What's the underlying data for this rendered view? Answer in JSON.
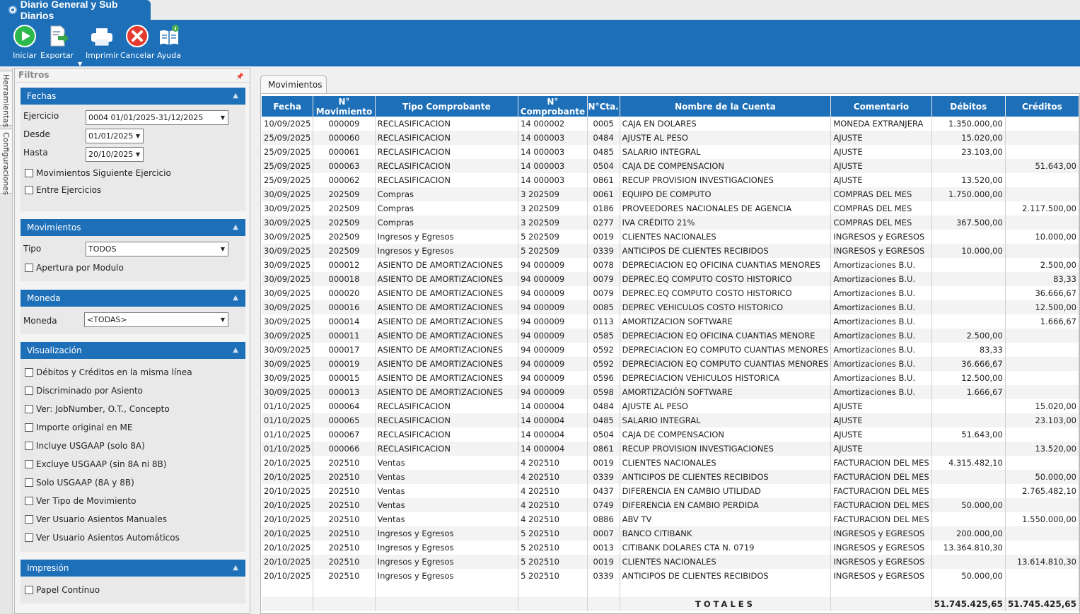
{
  "window": {
    "title": "Diario General y Sub Diarios"
  },
  "toolbar": {
    "buttons": [
      {
        "label": "Iniciar",
        "icon": "play-icon",
        "color": "#2db84d"
      },
      {
        "label": "Exportar",
        "icon": "export-icon",
        "color": "#3aa64a"
      },
      {
        "label": "Imprimir",
        "icon": "printer-icon",
        "color": "#ffffff"
      },
      {
        "label": "Cancelar",
        "icon": "cancel-icon",
        "color": "#e53b2f"
      },
      {
        "label": "Ayuda",
        "icon": "help-book-icon",
        "color": "#ffffff"
      }
    ]
  },
  "side_tabs": [
    "Herramientas",
    "Configuraciones"
  ],
  "filters": {
    "title": "Filtros",
    "fechas": {
      "title": "Fechas",
      "ejercicio_label": "Ejercicio",
      "ejercicio_value": "0004 01/01/2025-31/12/2025",
      "desde_label": "Desde",
      "desde_value": "01/01/2025",
      "hasta_label": "Hasta",
      "hasta_value": "20/10/2025",
      "checks": [
        "Movimientos Siguiente Ejercicio",
        "Entre Ejercicios"
      ]
    },
    "movimientos": {
      "title": "Movimientos",
      "tipo_label": "Tipo",
      "tipo_value": "TODOS",
      "checks": [
        "Apertura por Modulo"
      ]
    },
    "moneda": {
      "title": "Moneda",
      "moneda_label": "Moneda",
      "moneda_value": "<TODAS>"
    },
    "visualizacion": {
      "title": "Visualización",
      "checks": [
        "Débitos y Créditos en la misma línea",
        "Discriminado por Asiento",
        "Ver: JobNumber, O.T., Concepto",
        "Importe original en ME",
        "Incluye USGAAP (solo 8A)",
        "Excluye USGAAP (sin 8A ni 8B)",
        "Solo USGAAP (8A y 8B)",
        "Ver Tipo de Movimiento",
        "Ver Usuario Asientos Manuales",
        "Ver Usuario Asientos Automáticos"
      ]
    },
    "impresion": {
      "title": "Impresión",
      "checks": [
        "Papel Contínuo"
      ]
    }
  },
  "main": {
    "tab": "Movimientos",
    "columns": [
      "Fecha",
      "N° Movimiento",
      "Tipo Comprobante",
      "N° Comprobante",
      "N°Cta.",
      "Nombre de la Cuenta",
      "Comentario",
      "Débitos",
      "Créditos"
    ],
    "rows": [
      [
        "10/09/2025",
        "000009",
        "RECLASIFICACION",
        "14  000002",
        "0005",
        "CAJA EN DOLARES",
        "MONEDA EXTRANJERA",
        "1.350.000,00",
        ""
      ],
      [
        "25/09/2025",
        "000060",
        "RECLASIFICACION",
        "14  000003",
        "0484",
        "AJUSTE AL PESO",
        "AJUSTE",
        "15.020,00",
        ""
      ],
      [
        "25/09/2025",
        "000061",
        "RECLASIFICACION",
        "14  000003",
        "0485",
        "SALARIO INTEGRAL",
        "AJUSTE",
        "23.103,00",
        ""
      ],
      [
        "25/09/2025",
        "000063",
        "RECLASIFICACION",
        "14  000003",
        "0504",
        "CAJA DE COMPENSACION",
        "AJUSTE",
        "",
        "51.643,00"
      ],
      [
        "25/09/2025",
        "000062",
        "RECLASIFICACION",
        "14  000003",
        "0861",
        "RECUP PROVISION INVESTIGACIONES",
        "AJUSTE",
        "13.520,00",
        ""
      ],
      [
        "30/09/2025",
        "202509",
        "Compras",
        "3  202509",
        "0061",
        "EQUIPO DE COMPUTO",
        "COMPRAS DEL MES",
        "1.750.000,00",
        ""
      ],
      [
        "30/09/2025",
        "202509",
        "Compras",
        "3  202509",
        "0186",
        "PROVEEDORES NACIONALES DE AGENCIA",
        "COMPRAS DEL MES",
        "",
        "2.117.500,00"
      ],
      [
        "30/09/2025",
        "202509",
        "Compras",
        "3  202509",
        "0277",
        "IVA CRÉDITO 21%",
        "COMPRAS DEL MES",
        "367.500,00",
        ""
      ],
      [
        "30/09/2025",
        "202509",
        "Ingresos y Egresos",
        "5  202509",
        "0019",
        "CLIENTES NACIONALES",
        "INGRESOS y EGRESOS",
        "",
        "10.000,00"
      ],
      [
        "30/09/2025",
        "202509",
        "Ingresos y Egresos",
        "5  202509",
        "0339",
        "ANTICIPOS DE CLIENTES RECIBIDOS",
        "INGRESOS y EGRESOS",
        "10.000,00",
        ""
      ],
      [
        "30/09/2025",
        "000012",
        "ASIENTO DE AMORTIZACIONES",
        "94  000009",
        "0078",
        "DEPRECIACION EQ OFICINA CUANTIAS MENORES",
        "Amortizaciones B.U.",
        "",
        "2.500,00"
      ],
      [
        "30/09/2025",
        "000018",
        "ASIENTO DE AMORTIZACIONES",
        "94  000009",
        "0079",
        "DEPREC.EQ COMPUTO COSTO HISTORICO",
        "Amortizaciones B.U.",
        "",
        "83,33"
      ],
      [
        "30/09/2025",
        "000020",
        "ASIENTO DE AMORTIZACIONES",
        "94  000009",
        "0079",
        "DEPREC.EQ COMPUTO COSTO HISTORICO",
        "Amortizaciones B.U.",
        "",
        "36.666,67"
      ],
      [
        "30/09/2025",
        "000016",
        "ASIENTO DE AMORTIZACIONES",
        "94  000009",
        "0085",
        "DEPREC VEHICULOS COSTO HISTORICO",
        "Amortizaciones B.U.",
        "",
        "12.500,00"
      ],
      [
        "30/09/2025",
        "000014",
        "ASIENTO DE AMORTIZACIONES",
        "94  000009",
        "0113",
        "AMORTIZACION SOFTWARE",
        "Amortizaciones B.U.",
        "",
        "1.666,67"
      ],
      [
        "30/09/2025",
        "000011",
        "ASIENTO DE AMORTIZACIONES",
        "94  000009",
        "0585",
        "DEPRECIACION EQ OFICINA CUANTIAS  MENORE",
        "Amortizaciones B.U.",
        "2.500,00",
        ""
      ],
      [
        "30/09/2025",
        "000017",
        "ASIENTO DE AMORTIZACIONES",
        "94  000009",
        "0592",
        "DEPRECIACION EQ COMPUTO CUANTIAS MENORES",
        "Amortizaciones B.U.",
        "83,33",
        ""
      ],
      [
        "30/09/2025",
        "000019",
        "ASIENTO DE AMORTIZACIONES",
        "94  000009",
        "0592",
        "DEPRECIACION EQ COMPUTO CUANTIAS MENORES",
        "Amortizaciones B.U.",
        "36.666,67",
        ""
      ],
      [
        "30/09/2025",
        "000015",
        "ASIENTO DE AMORTIZACIONES",
        "94  000009",
        "0596",
        "DEPRECIACION VEHICULOS HISTORICA",
        "Amortizaciones B.U.",
        "12.500,00",
        ""
      ],
      [
        "30/09/2025",
        "000013",
        "ASIENTO DE AMORTIZACIONES",
        "94  000009",
        "0598",
        "AMORTIZACIÓN SOFTWARE",
        "Amortizaciones B.U.",
        "1.666,67",
        ""
      ],
      [
        "01/10/2025",
        "000064",
        "RECLASIFICACION",
        "14  000004",
        "0484",
        "AJUSTE AL PESO",
        "AJUSTE",
        "",
        "15.020,00"
      ],
      [
        "01/10/2025",
        "000065",
        "RECLASIFICACION",
        "14  000004",
        "0485",
        "SALARIO INTEGRAL",
        "AJUSTE",
        "",
        "23.103,00"
      ],
      [
        "01/10/2025",
        "000067",
        "RECLASIFICACION",
        "14  000004",
        "0504",
        "CAJA DE COMPENSACION",
        "AJUSTE",
        "51.643,00",
        ""
      ],
      [
        "01/10/2025",
        "000066",
        "RECLASIFICACION",
        "14  000004",
        "0861",
        "RECUP PROVISION INVESTIGACIONES",
        "AJUSTE",
        "",
        "13.520,00"
      ],
      [
        "20/10/2025",
        "202510",
        "Ventas",
        "4  202510",
        "0019",
        "CLIENTES NACIONALES",
        "FACTURACION DEL MES",
        "4.315.482,10",
        ""
      ],
      [
        "20/10/2025",
        "202510",
        "Ventas",
        "4  202510",
        "0339",
        "ANTICIPOS DE CLIENTES RECIBIDOS",
        "FACTURACION DEL MES",
        "",
        "50.000,00"
      ],
      [
        "20/10/2025",
        "202510",
        "Ventas",
        "4  202510",
        "0437",
        "DIFERENCIA EN CAMBIO UTILIDAD",
        "FACTURACION DEL MES",
        "",
        "2.765.482,10"
      ],
      [
        "20/10/2025",
        "202510",
        "Ventas",
        "4  202510",
        "0749",
        "DIFERENCIA EN CAMBIO PERDIDA",
        "FACTURACION DEL MES",
        "50.000,00",
        ""
      ],
      [
        "20/10/2025",
        "202510",
        "Ventas",
        "4  202510",
        "0886",
        "ABV TV",
        "FACTURACION DEL MES",
        "",
        "1.550.000,00"
      ],
      [
        "20/10/2025",
        "202510",
        "Ingresos y Egresos",
        "5  202510",
        "0007",
        "BANCO CITIBANK",
        "INGRESOS y EGRESOS",
        "200.000,00",
        ""
      ],
      [
        "20/10/2025",
        "202510",
        "Ingresos y Egresos",
        "5  202510",
        "0013",
        "CITIBANK DOLARES CTA N. 0719",
        "INGRESOS y EGRESOS",
        "13.364.810,30",
        ""
      ],
      [
        "20/10/2025",
        "202510",
        "Ingresos y Egresos",
        "5  202510",
        "0019",
        "CLIENTES NACIONALES",
        "INGRESOS y EGRESOS",
        "",
        "13.614.810,30"
      ],
      [
        "20/10/2025",
        "202510",
        "Ingresos y Egresos",
        "5  202510",
        "0339",
        "ANTICIPOS DE CLIENTES RECIBIDOS",
        "INGRESOS y EGRESOS",
        "50.000,00",
        ""
      ]
    ],
    "totals": {
      "label": "TOTALES",
      "debitos": "51.745.425,65",
      "creditos": "51.745.425,65"
    }
  },
  "colors": {
    "accent": "#1d6fb8",
    "header_text": "#ffffff"
  }
}
